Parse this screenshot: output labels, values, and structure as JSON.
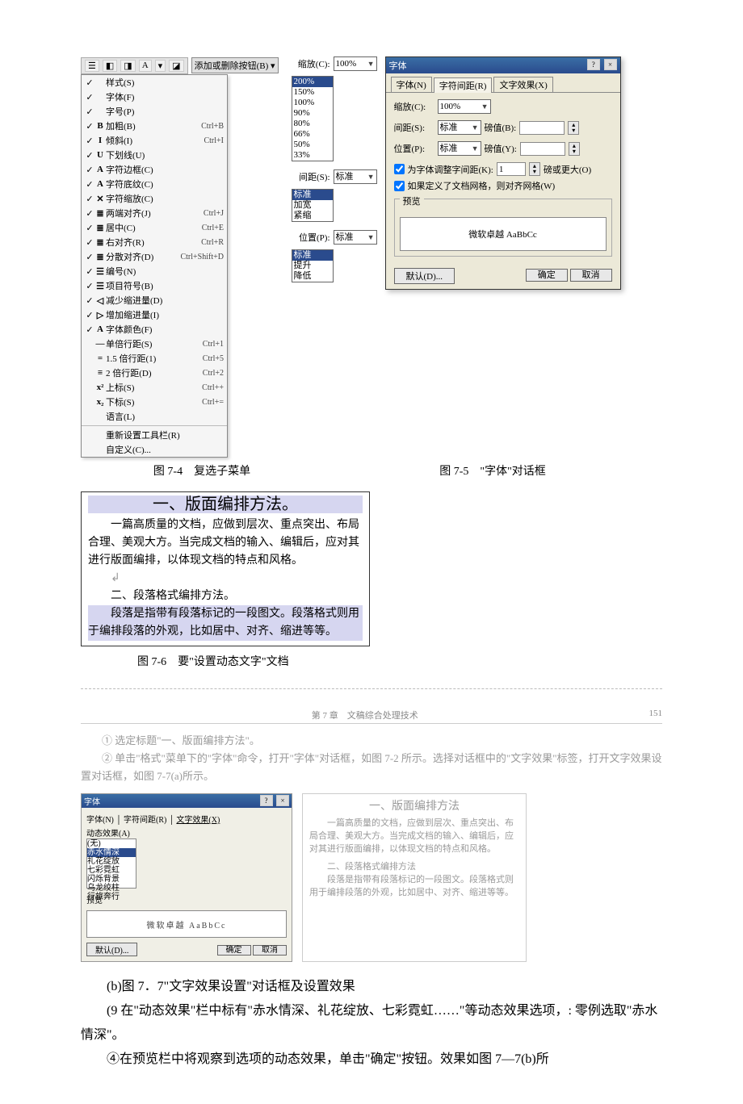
{
  "toolbar": {
    "icons": [
      "☰",
      "◧",
      "◨",
      "A",
      "▾",
      "◪"
    ],
    "add_remove": "添加或删除按钮(B) ▾"
  },
  "submenu": {
    "items": [
      {
        "chk": "✓",
        "icon": "",
        "label": "样式(S)",
        "sc": ""
      },
      {
        "chk": "✓",
        "icon": "",
        "label": "字体(F)",
        "sc": ""
      },
      {
        "chk": "✓",
        "icon": "",
        "label": "字号(P)",
        "sc": ""
      },
      {
        "chk": "✓",
        "icon": "B",
        "label": "加粗(B)",
        "sc": "Ctrl+B"
      },
      {
        "chk": "✓",
        "icon": "I",
        "label": "倾斜(I)",
        "sc": "Ctrl+I"
      },
      {
        "chk": "✓",
        "icon": "U",
        "label": "下划线(U)",
        "sc": ""
      },
      {
        "chk": "✓",
        "icon": "A",
        "label": "字符边框(C)",
        "sc": ""
      },
      {
        "chk": "✓",
        "icon": "A",
        "label": "字符底纹(C)",
        "sc": ""
      },
      {
        "chk": "✓",
        "icon": "✕",
        "label": "字符缩放(C)",
        "sc": ""
      },
      {
        "chk": "✓",
        "icon": "≣",
        "label": "两端对齐(J)",
        "sc": "Ctrl+J"
      },
      {
        "chk": "✓",
        "icon": "≣",
        "label": "居中(C)",
        "sc": "Ctrl+E"
      },
      {
        "chk": "✓",
        "icon": "≣",
        "label": "右对齐(R)",
        "sc": "Ctrl+R"
      },
      {
        "chk": "✓",
        "icon": "≣",
        "label": "分散对齐(D)",
        "sc": "Ctrl+Shift+D"
      },
      {
        "chk": "✓",
        "icon": "☰",
        "label": "编号(N)",
        "sc": ""
      },
      {
        "chk": "✓",
        "icon": "☰",
        "label": "项目符号(B)",
        "sc": ""
      },
      {
        "chk": "✓",
        "icon": "◁",
        "label": "减少缩进量(D)",
        "sc": ""
      },
      {
        "chk": "✓",
        "icon": "▷",
        "label": "增加缩进量(I)",
        "sc": ""
      },
      {
        "chk": "✓",
        "icon": "A",
        "label": "字体颜色(F)",
        "sc": ""
      },
      {
        "chk": "",
        "icon": "—",
        "label": "单倍行距(S)",
        "sc": "Ctrl+1"
      },
      {
        "chk": "",
        "icon": "=",
        "label": "1.5 倍行距(1)",
        "sc": "Ctrl+5"
      },
      {
        "chk": "",
        "icon": "≡",
        "label": "2 倍行距(D)",
        "sc": "Ctrl+2"
      },
      {
        "chk": "",
        "icon": "x²",
        "label": "上标(S)",
        "sc": "Ctrl++"
      },
      {
        "chk": "",
        "icon": "x₂",
        "label": "下标(S)",
        "sc": "Ctrl+="
      },
      {
        "chk": "",
        "icon": "",
        "label": "语言(L)",
        "sc": ""
      }
    ],
    "footer1": "重新设置工具栏(R)",
    "footer2": "自定义(C)..."
  },
  "midcol": {
    "scale_label": "缩放(C):",
    "scale_sel": "200%",
    "scale_opts": [
      "200%",
      "150%",
      "100%",
      "90%",
      "80%",
      "66%",
      "50%",
      "33%"
    ],
    "spacing_label": "间距(S):",
    "spacing_sel": "标准",
    "spacing_opts": [
      "标准",
      "加宽",
      "紧缩"
    ],
    "position_label": "位置(P):",
    "position_sel": "标准",
    "position_opts": [
      "标准",
      "提升",
      "降低"
    ]
  },
  "dialog": {
    "title": "字体",
    "tabs": [
      "字体(N)",
      "字符间距(R)",
      "文字效果(X)"
    ],
    "active_tab": 1,
    "scale_label": "缩放(C):",
    "scale_val": "100%",
    "spacing_label": "间距(S):",
    "spacing_val": "标准",
    "spacing_amt_label": "磅值(B):",
    "position_label": "位置(P):",
    "position_val": "标准",
    "position_amt_label": "磅值(Y):",
    "kern_chk": "为字体调整字间距(K):",
    "kern_val": "1",
    "kern_suffix": "磅或更大(O)",
    "grid_chk": "如果定义了文档网格，则对齐网格(W)",
    "preview_legend": "预览",
    "preview_text": "微软卓越 AaBbCc",
    "btn_default": "默认(D)...",
    "btn_ok": "确定",
    "btn_cancel": "取消"
  },
  "captions": {
    "c74": "图 7-4　复选子菜单",
    "c75": "图 7-5　\"字体\"对话框",
    "c76": "图 7-6　要\"设置动态文字\"文档"
  },
  "docfig": {
    "t1": "一、版面编排方法。",
    "p1": "一篇高质量的文档，应做到层次、重点突出、布局合理、美观大方。当完成文档的输入、编辑后，应对其进行版面编排，以体现文档的特点和风格。",
    "t2": "二、段落格式编排方法。",
    "p2": "段落是指带有段落标记的一段图文。段落格式则用于编排段落的外观，比如居中、对齐、缩进等等。"
  },
  "page2": {
    "header_l": "第 7 章　文稿综合处理技术",
    "header_r": "151",
    "line1": "① 选定标题\"一、版面编排方法\"。",
    "line2": "② 单击\"格式\"菜单下的\"字体\"命令，打开\"字体\"对话框，如图 7-2 所示。选择对话框中的\"文字效果\"标签，打开文字效果设置对话框，如图 7-7(a)所示。"
  },
  "dialog2": {
    "title": "字体",
    "tabs": [
      "字体(N)",
      "字符间距(R)",
      "文字效果(X)"
    ],
    "eff_label": "动态效果(A)",
    "eff_opts": [
      "(无)",
      "赤水情深",
      "礼花绽放",
      "七彩霓虹",
      "闪烁背景",
      "乌龙绞柱",
      "行旅奔行"
    ],
    "preview_legend": "预览",
    "preview_text": "微软卓越 AaBbCc",
    "btn_default": "默认(D)...",
    "btn_ok": "确定",
    "btn_cancel": "取消"
  },
  "resultdoc": {
    "t1": "一、版面编排方法",
    "p1": "一篇高质量的文档，应做到层次、重点突出、布局合理、美观大方。当完成文档的输入、编辑后，应对其进行版面编排，以体现文档的特点和风格。",
    "t2": "二、段落格式编排方法",
    "p2": "段落是指带有段落标记的一段图文。段落格式则用于编排段落的外观，比如居中、对齐、缩进等等。"
  },
  "body": {
    "b1": "(b)图 7．7\"文字效果设置\"对话框及设置效果",
    "b2": "(9 在\"动态效果\"栏中标有\"赤水情深、礼花绽放、七彩霓虹……\"等动态效果选项，: 零例选取\"赤水情深\"。",
    "b3": "④在预览栏中将观察到选项的动态效果，单击\"确定\"按钮。效果如图 7—7(b)所"
  },
  "colors": {
    "titlebar_bg": "#2a4b8d",
    "dialog_bg": "#ece9d8",
    "selection_bg": "#2a4b8d",
    "faint_text": "#9a9a9a"
  }
}
